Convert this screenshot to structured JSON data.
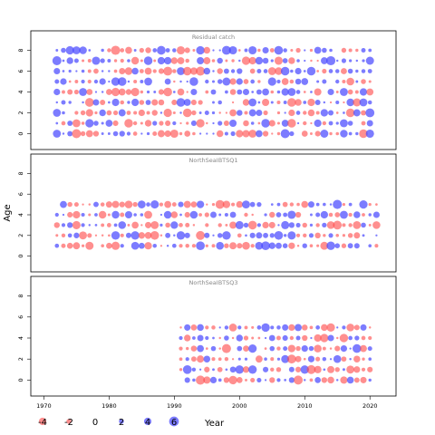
{
  "chart_data": {
    "type": "bubble",
    "ylabel": "Age",
    "xlabel": "Year",
    "xlim": [
      1968,
      2024
    ],
    "x_ticks": [
      1970,
      1980,
      1990,
      2000,
      2010,
      2020
    ],
    "y_ticks": [
      0,
      2,
      4,
      6,
      8
    ],
    "colors": {
      "positive": "#4444ff",
      "negative": "#ff4444",
      "positive_alpha": 0.7,
      "negative_alpha": 0.6
    },
    "legend": {
      "position": "bottom-left",
      "values": [
        -4,
        -2,
        0,
        2,
        4,
        6
      ]
    },
    "panels": [
      {
        "title": "Residual catch",
        "ylim": [
          -1,
          9
        ],
        "years": [
          1972,
          2020
        ],
        "ages": [
          0,
          1,
          2,
          3,
          4,
          5,
          6,
          7,
          8
        ]
      },
      {
        "title": "NorthSeaIBTSQ1",
        "ylim": [
          -1,
          9
        ],
        "years": [
          1972,
          2021
        ],
        "ages": [
          1,
          2,
          3,
          4,
          5
        ]
      },
      {
        "title": "NorthSeaIBTSQ3",
        "ylim": [
          -1,
          9
        ],
        "years": [
          1991,
          2020
        ],
        "ages": [
          0,
          1,
          2,
          3,
          4,
          5
        ]
      }
    ]
  }
}
